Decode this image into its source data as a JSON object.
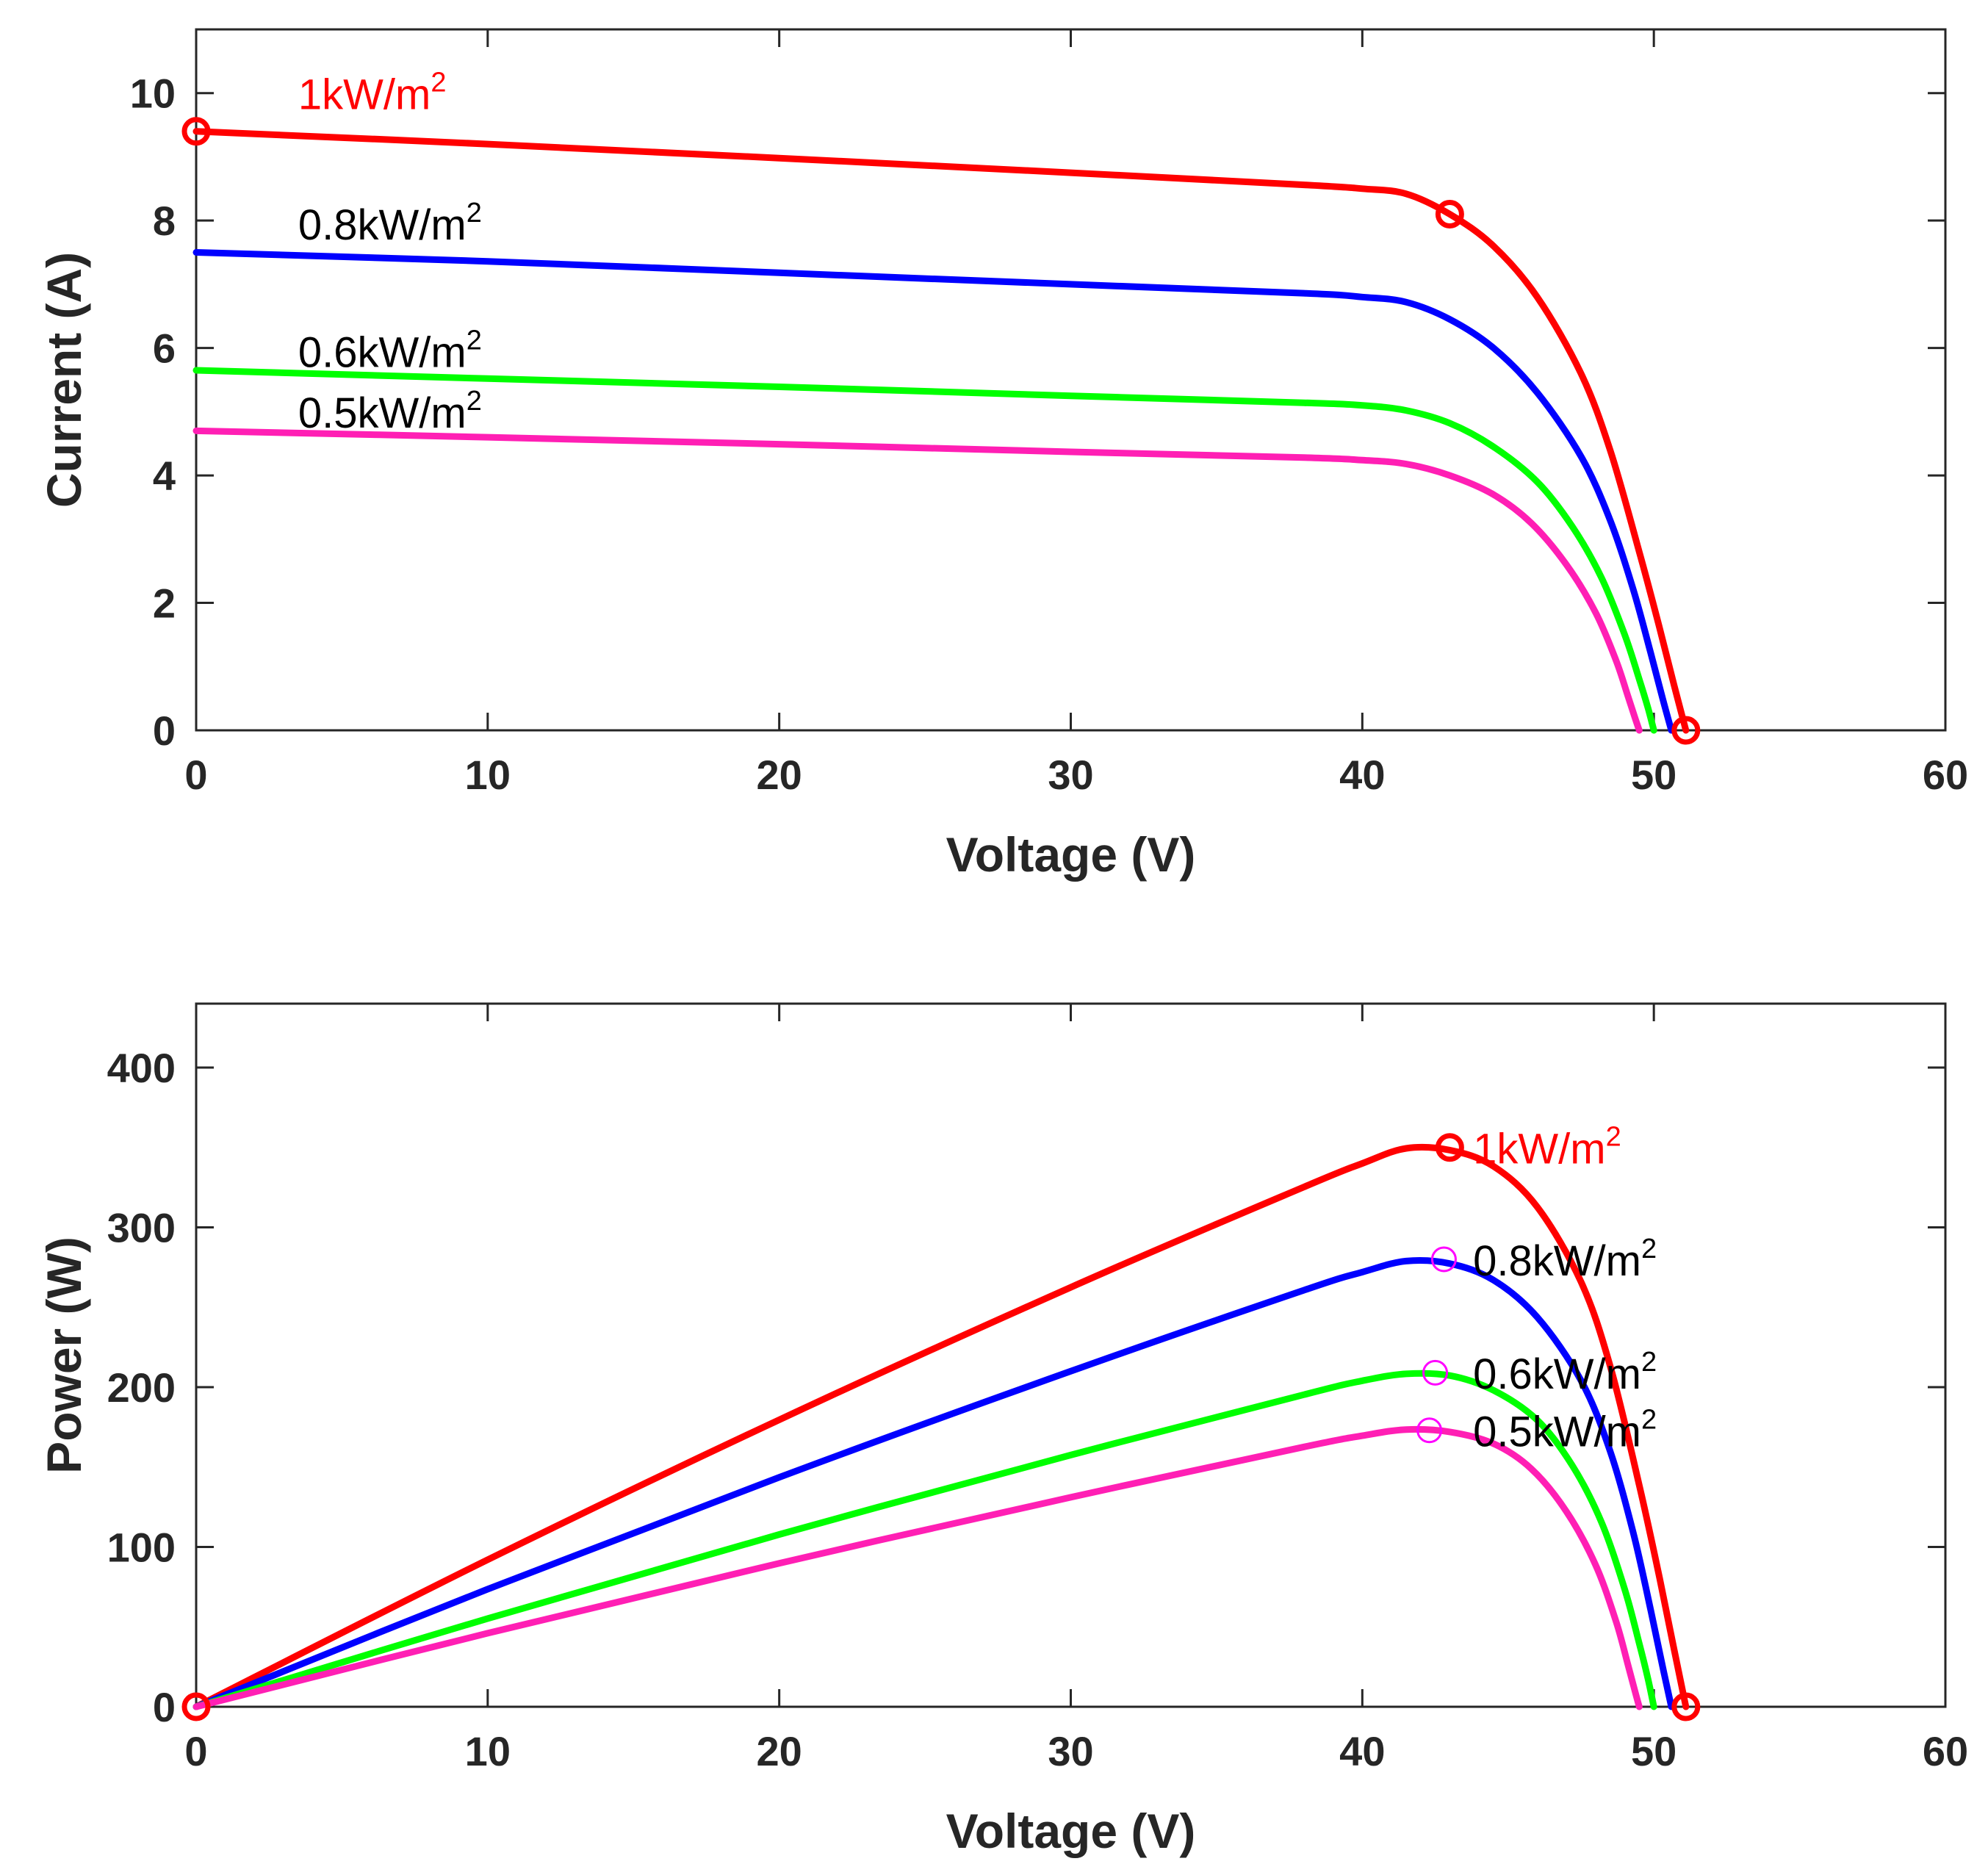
{
  "chart_data": [
    {
      "type": "line",
      "id": "iv",
      "title": "",
      "xlabel": "Voltage (V)",
      "ylabel": "Current (A)",
      "xlim": [
        0,
        60
      ],
      "ylim": [
        0,
        11
      ],
      "xticks": [
        0,
        10,
        20,
        30,
        40,
        50,
        60
      ],
      "yticks": [
        0,
        2,
        4,
        6,
        8,
        10
      ],
      "grid": false,
      "series": [
        {
          "name": "1kW/m2",
          "color": "#ff0000",
          "isc": 9.4,
          "voc": 51.1,
          "x": [
            0,
            10,
            20,
            30,
            38,
            40,
            41.5,
            43,
            44.5,
            46,
            47.5,
            48.5,
            49.5,
            50.2,
            50.7,
            51.1
          ],
          "y": [
            9.4,
            9.2,
            8.98,
            8.75,
            8.56,
            8.5,
            8.42,
            8.1,
            7.6,
            6.8,
            5.6,
            4.4,
            2.8,
            1.6,
            0.7,
            0
          ]
        },
        {
          "name": "0.8kW/m2",
          "color": "#0000ff",
          "isc": 7.5,
          "voc": 50.6,
          "x": [
            0,
            10,
            20,
            30,
            38,
            40,
            41.5,
            43,
            44.5,
            46,
            47.5,
            48.5,
            49.3,
            49.9,
            50.3,
            50.6
          ],
          "y": [
            7.5,
            7.36,
            7.18,
            7.0,
            6.86,
            6.8,
            6.72,
            6.45,
            6.0,
            5.3,
            4.3,
            3.3,
            2.2,
            1.2,
            0.5,
            0
          ]
        },
        {
          "name": "0.6kW/m2",
          "color": "#00ff00",
          "isc": 5.65,
          "voc": 50.0,
          "x": [
            0,
            10,
            20,
            30,
            38,
            40,
            41.5,
            43,
            44.5,
            46,
            47.2,
            48.2,
            49.0,
            49.5,
            49.8,
            50.0
          ],
          "y": [
            5.65,
            5.52,
            5.39,
            5.25,
            5.14,
            5.1,
            5.02,
            4.82,
            4.45,
            3.9,
            3.2,
            2.4,
            1.5,
            0.8,
            0.35,
            0
          ]
        },
        {
          "name": "0.5kW/m2",
          "color": "#ff1fb4",
          "isc": 4.7,
          "voc": 49.5,
          "x": [
            0,
            10,
            20,
            30,
            38,
            40,
            41.5,
            43,
            44.5,
            45.8,
            47.0,
            48.0,
            48.7,
            49.1,
            49.35,
            49.5
          ],
          "y": [
            4.7,
            4.6,
            4.49,
            4.37,
            4.28,
            4.24,
            4.18,
            4.0,
            3.7,
            3.25,
            2.6,
            1.85,
            1.1,
            0.55,
            0.2,
            0
          ]
        }
      ],
      "markers": [
        {
          "x": 0,
          "y": 9.4,
          "color": "#ff0000"
        },
        {
          "x": 43,
          "y": 8.1,
          "color": "#ff0000"
        },
        {
          "x": 51.1,
          "y": 0,
          "color": "#ff0000"
        }
      ],
      "annotations": [
        {
          "text": "1kW/m",
          "sup": "2",
          "x": 3.5,
          "y": 9.75,
          "color": "#ff0000"
        },
        {
          "text": "0.8kW/m",
          "sup": "2",
          "x": 3.5,
          "y": 7.7,
          "color": "#000000"
        },
        {
          "text": "0.6kW/m",
          "sup": "2",
          "x": 3.5,
          "y": 5.7,
          "color": "#000000"
        },
        {
          "text": "0.5kW/m",
          "sup": "2",
          "x": 3.5,
          "y": 4.75,
          "color": "#000000"
        }
      ]
    },
    {
      "type": "line",
      "id": "pv",
      "title": "",
      "xlabel": "Voltage (V)",
      "ylabel": "Power (W)",
      "xlim": [
        0,
        60
      ],
      "ylim": [
        0,
        440
      ],
      "xticks": [
        0,
        10,
        20,
        30,
        40,
        50,
        60
      ],
      "yticks": [
        0,
        100,
        200,
        300,
        400
      ],
      "grid": false,
      "series": [
        {
          "name": "1kW/m2",
          "color": "#ff0000"
        },
        {
          "name": "0.8kW/m2",
          "color": "#0000ff"
        },
        {
          "name": "0.6kW/m2",
          "color": "#00ff00"
        },
        {
          "name": "0.5kW/m2",
          "color": "#ff1fb4"
        }
      ],
      "markers": [
        {
          "x": 0,
          "y": 0,
          "color": "#ff0000"
        },
        {
          "x": 43,
          "y": 350,
          "color": "#ff0000"
        },
        {
          "x": 51.1,
          "y": 0,
          "color": "#ff0000"
        },
        {
          "x": 42.8,
          "y": 280,
          "color": "#ff00ff"
        },
        {
          "x": 42.5,
          "y": 209,
          "color": "#ff00ff"
        },
        {
          "x": 42.3,
          "y": 173,
          "color": "#ff00ff"
        }
      ],
      "annotations": [
        {
          "text": "1kW/m",
          "sup": "2",
          "x": 43.8,
          "y": 340,
          "color": "#ff0000"
        },
        {
          "text": "0.8kW/m",
          "sup": "2",
          "x": 43.8,
          "y": 270,
          "color": "#000000"
        },
        {
          "text": "0.6kW/m",
          "sup": "2",
          "x": 43.8,
          "y": 199,
          "color": "#000000"
        },
        {
          "text": "0.5kW/m",
          "sup": "2",
          "x": 43.8,
          "y": 163,
          "color": "#000000"
        }
      ]
    }
  ]
}
